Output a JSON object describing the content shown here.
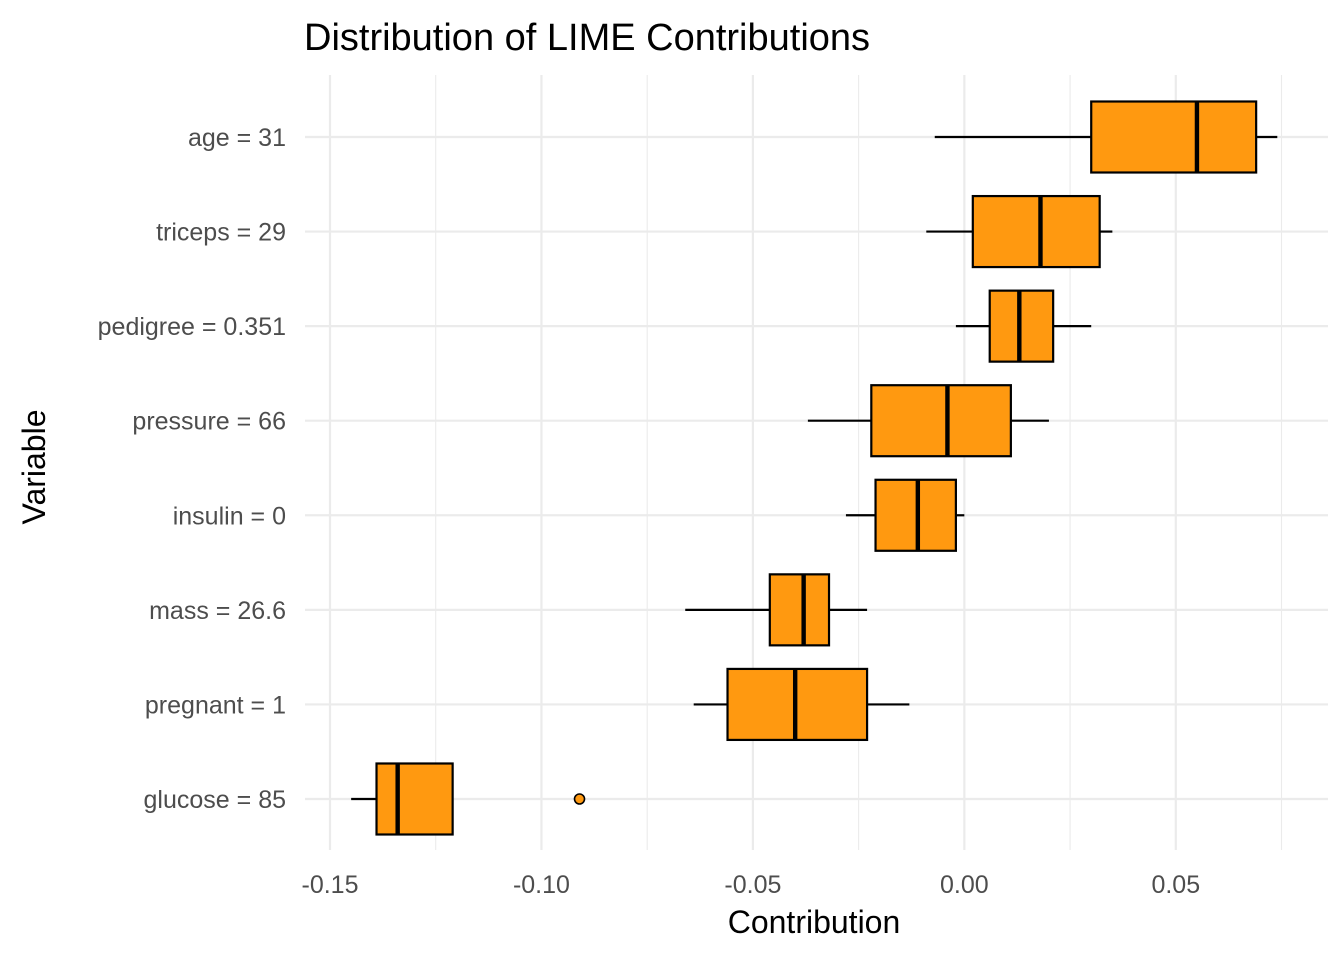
{
  "chart_data": {
    "type": "boxplot",
    "title": "Distribution of LIME Contributions",
    "xlabel": "Contribution",
    "ylabel": "Variable",
    "xlim": [
      -0.158,
      0.085
    ],
    "xticks": [
      -0.15,
      -0.1,
      -0.05,
      0.0,
      0.05
    ],
    "xtick_labels": [
      "-0.15",
      "-0.10",
      "-0.05",
      "0.00",
      "0.05"
    ],
    "grid": true,
    "fill_color": "#FF9910",
    "categories": [
      "age = 31",
      "triceps = 29",
      "pedigree = 0.351",
      "pressure = 66",
      "insulin = 0",
      "mass = 26.6",
      "pregnant = 1",
      "glucose = 85"
    ],
    "boxes": [
      {
        "label": "age = 31",
        "min": -0.007,
        "q1": 0.03,
        "median": 0.055,
        "q3": 0.069,
        "max": 0.074,
        "outliers": []
      },
      {
        "label": "triceps = 29",
        "min": -0.009,
        "q1": 0.002,
        "median": 0.018,
        "q3": 0.032,
        "max": 0.035,
        "outliers": []
      },
      {
        "label": "pedigree = 0.351",
        "min": -0.002,
        "q1": 0.006,
        "median": 0.013,
        "q3": 0.021,
        "max": 0.03,
        "outliers": []
      },
      {
        "label": "pressure = 66",
        "min": -0.037,
        "q1": -0.022,
        "median": -0.004,
        "q3": 0.011,
        "max": 0.02,
        "outliers": []
      },
      {
        "label": "insulin = 0",
        "min": -0.028,
        "q1": -0.021,
        "median": -0.011,
        "q3": -0.002,
        "max": 0.0,
        "outliers": []
      },
      {
        "label": "mass = 26.6",
        "min": -0.066,
        "q1": -0.046,
        "median": -0.038,
        "q3": -0.032,
        "max": -0.023,
        "outliers": []
      },
      {
        "label": "pregnant = 1",
        "min": -0.064,
        "q1": -0.056,
        "median": -0.04,
        "q3": -0.023,
        "max": -0.013,
        "outliers": []
      },
      {
        "label": "glucose = 85",
        "min": -0.145,
        "q1": -0.139,
        "median": -0.134,
        "q3": -0.121,
        "max": -0.121,
        "outliers": [
          -0.091
        ]
      }
    ]
  }
}
